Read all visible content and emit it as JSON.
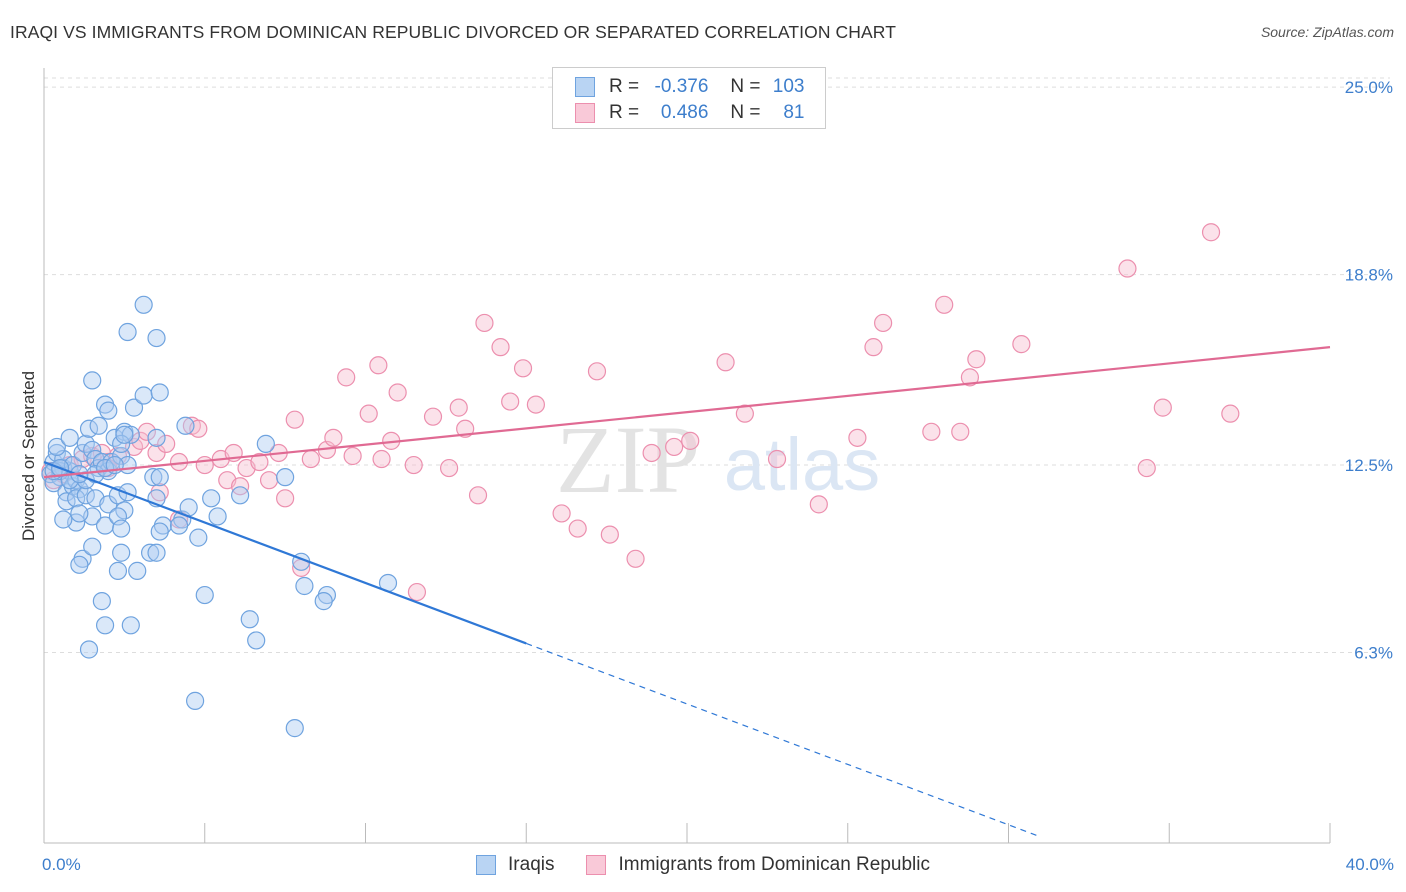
{
  "header": {
    "title": "IRAQI VS IMMIGRANTS FROM DOMINICAN REPUBLIC DIVORCED OR SEPARATED CORRELATION CHART",
    "source": "Source: ZipAtlas.com"
  },
  "watermark": {
    "zip": "ZIP",
    "atlas": "atlas"
  },
  "legend": {
    "rows": [
      {
        "r_label": "R =",
        "r_value": "-0.376",
        "n_label": "N =",
        "n_value": "103"
      },
      {
        "r_label": "R =",
        "r_value": "0.486",
        "n_label": "N =",
        "n_value": "81"
      }
    ]
  },
  "colors": {
    "blue_fill": "#aecdf1",
    "blue_stroke": "#6fa3df",
    "blue_line": "#2f78d6",
    "pink_fill": "#f7bfd0",
    "pink_stroke": "#ec8fae",
    "pink_line": "#e06a93",
    "grid": "#dddddd",
    "tick_text": "#3d7ecc"
  },
  "chart_data": {
    "type": "scatter",
    "title": "IRAQI VS IMMIGRANTS FROM DOMINICAN REPUBLIC DIVORCED OR SEPARATED CORRELATION CHART",
    "xlabel": "",
    "ylabel": "Divorced or Separated",
    "xlim": [
      0,
      40
    ],
    "ylim": [
      0,
      25.5
    ],
    "x_tick_labels": [
      {
        "value": 0,
        "label": "0.0%"
      },
      {
        "value": 40,
        "label": "40.0%"
      }
    ],
    "y_ticks": [
      {
        "value": 6.3,
        "label": "6.3%"
      },
      {
        "value": 12.5,
        "label": "12.5%"
      },
      {
        "value": 18.8,
        "label": "18.8%"
      },
      {
        "value": 25.0,
        "label": "25.0%"
      }
    ],
    "grid": true,
    "legend_placement": "top-center",
    "series": [
      {
        "name": "Iraqis",
        "r": -0.376,
        "n": 103,
        "trend": {
          "x0": 0,
          "y0": 12.6,
          "x1": 15,
          "y1": 6.6,
          "dashed_to_x": 31
        },
        "points": [
          [
            0.2,
            12.2
          ],
          [
            0.3,
            12.6
          ],
          [
            0.4,
            12.9
          ],
          [
            0.5,
            12.1
          ],
          [
            0.6,
            12.4
          ],
          [
            0.3,
            11.9
          ],
          [
            0.8,
            12.3
          ],
          [
            0.7,
            11.6
          ],
          [
            0.9,
            11.8
          ],
          [
            1.0,
            12.0
          ],
          [
            0.5,
            12.3
          ],
          [
            0.6,
            12.7
          ],
          [
            0.9,
            12.5
          ],
          [
            1.1,
            11.7
          ],
          [
            1.2,
            12.9
          ],
          [
            0.4,
            13.1
          ],
          [
            0.8,
            13.4
          ],
          [
            1.3,
            13.2
          ],
          [
            1.5,
            13.0
          ],
          [
            1.6,
            12.7
          ],
          [
            1.7,
            12.4
          ],
          [
            1.8,
            12.6
          ],
          [
            2.0,
            12.3
          ],
          [
            2.1,
            12.6
          ],
          [
            2.4,
            12.8
          ],
          [
            2.6,
            12.5
          ],
          [
            1.4,
            13.7
          ],
          [
            1.7,
            13.8
          ],
          [
            2.2,
            13.4
          ],
          [
            2.5,
            13.6
          ],
          [
            0.7,
            11.3
          ],
          [
            1.0,
            11.4
          ],
          [
            1.3,
            11.5
          ],
          [
            1.6,
            11.4
          ],
          [
            2.0,
            11.2
          ],
          [
            2.3,
            11.5
          ],
          [
            2.5,
            11.0
          ],
          [
            2.6,
            11.6
          ],
          [
            1.0,
            10.6
          ],
          [
            1.5,
            10.8
          ],
          [
            1.9,
            10.5
          ],
          [
            2.3,
            10.8
          ],
          [
            2.4,
            10.4
          ],
          [
            0.6,
            10.7
          ],
          [
            1.1,
            10.9
          ],
          [
            3.5,
            11.4
          ],
          [
            3.7,
            10.5
          ],
          [
            4.3,
            10.7
          ],
          [
            4.5,
            11.1
          ],
          [
            5.2,
            11.4
          ],
          [
            5.4,
            10.8
          ],
          [
            6.1,
            11.5
          ],
          [
            1.2,
            9.4
          ],
          [
            1.5,
            9.8
          ],
          [
            2.4,
            9.6
          ],
          [
            2.9,
            9.0
          ],
          [
            3.3,
            9.6
          ],
          [
            3.5,
            9.6
          ],
          [
            3.6,
            10.3
          ],
          [
            4.2,
            10.5
          ],
          [
            1.1,
            9.2
          ],
          [
            2.3,
            9.0
          ],
          [
            1.8,
            8.0
          ],
          [
            1.9,
            7.2
          ],
          [
            2.7,
            7.2
          ],
          [
            5.0,
            8.2
          ],
          [
            6.4,
            7.4
          ],
          [
            6.6,
            6.7
          ],
          [
            1.4,
            6.4
          ],
          [
            4.7,
            4.7
          ],
          [
            7.8,
            3.8
          ],
          [
            1.5,
            15.3
          ],
          [
            1.9,
            14.5
          ],
          [
            2.0,
            14.3
          ],
          [
            2.8,
            14.4
          ],
          [
            3.1,
            14.8
          ],
          [
            3.6,
            14.9
          ],
          [
            4.4,
            13.8
          ],
          [
            2.7,
            13.5
          ],
          [
            3.5,
            13.4
          ],
          [
            2.6,
            16.9
          ],
          [
            3.5,
            16.7
          ],
          [
            3.1,
            17.8
          ],
          [
            6.9,
            13.2
          ],
          [
            7.5,
            12.1
          ],
          [
            8.1,
            8.5
          ],
          [
            8.8,
            8.2
          ],
          [
            8.7,
            8.0
          ],
          [
            10.7,
            8.6
          ],
          [
            8.0,
            9.3
          ],
          [
            2.4,
            13.2
          ],
          [
            2.5,
            13.5
          ],
          [
            1.3,
            12.0
          ],
          [
            1.6,
            12.2
          ],
          [
            1.9,
            12.4
          ],
          [
            3.4,
            12.1
          ],
          [
            3.6,
            12.1
          ],
          [
            2.2,
            12.5
          ],
          [
            0.8,
            12.0
          ],
          [
            1.1,
            12.2
          ],
          [
            0.3,
            12.3
          ],
          [
            0.5,
            12.4
          ],
          [
            4.8,
            10.1
          ]
        ]
      },
      {
        "name": "Immigrants from Dominican Republic",
        "r": 0.486,
        "n": 81,
        "trend": {
          "x0": 0,
          "y0": 12.1,
          "x1": 40,
          "y1": 16.4
        },
        "points": [
          [
            0.2,
            12.3
          ],
          [
            0.3,
            12.0
          ],
          [
            0.5,
            12.4
          ],
          [
            0.6,
            12.2
          ],
          [
            0.8,
            12.5
          ],
          [
            1.2,
            12.7
          ],
          [
            1.5,
            12.8
          ],
          [
            1.8,
            12.9
          ],
          [
            2.0,
            12.6
          ],
          [
            2.3,
            12.8
          ],
          [
            2.8,
            13.1
          ],
          [
            3.0,
            13.3
          ],
          [
            3.2,
            13.6
          ],
          [
            3.5,
            12.9
          ],
          [
            3.8,
            13.2
          ],
          [
            4.2,
            12.6
          ],
          [
            4.6,
            13.8
          ],
          [
            5.0,
            12.5
          ],
          [
            5.5,
            12.7
          ],
          [
            5.9,
            12.9
          ],
          [
            6.3,
            12.4
          ],
          [
            6.7,
            12.6
          ],
          [
            7.0,
            12.0
          ],
          [
            7.3,
            12.9
          ],
          [
            7.5,
            11.4
          ],
          [
            7.8,
            14.0
          ],
          [
            8.3,
            12.7
          ],
          [
            8.8,
            13.0
          ],
          [
            9.0,
            13.4
          ],
          [
            9.6,
            12.8
          ],
          [
            10.1,
            14.2
          ],
          [
            9.4,
            15.4
          ],
          [
            10.5,
            12.7
          ],
          [
            10.8,
            13.3
          ],
          [
            11.0,
            14.9
          ],
          [
            10.4,
            15.8
          ],
          [
            11.5,
            12.5
          ],
          [
            12.1,
            14.1
          ],
          [
            12.6,
            12.4
          ],
          [
            12.9,
            14.4
          ],
          [
            13.1,
            13.7
          ],
          [
            13.5,
            11.5
          ],
          [
            13.7,
            17.2
          ],
          [
            14.2,
            16.4
          ],
          [
            14.5,
            14.6
          ],
          [
            14.9,
            15.7
          ],
          [
            15.3,
            14.5
          ],
          [
            16.1,
            10.9
          ],
          [
            16.6,
            10.4
          ],
          [
            17.2,
            15.6
          ],
          [
            17.6,
            10.2
          ],
          [
            18.4,
            9.4
          ],
          [
            18.9,
            12.9
          ],
          [
            19.6,
            13.1
          ],
          [
            20.1,
            13.3
          ],
          [
            21.2,
            15.9
          ],
          [
            21.8,
            14.2
          ],
          [
            22.8,
            12.7
          ],
          [
            24.1,
            11.2
          ],
          [
            25.3,
            13.4
          ],
          [
            25.8,
            16.4
          ],
          [
            26.1,
            17.2
          ],
          [
            27.6,
            13.6
          ],
          [
            28.0,
            17.8
          ],
          [
            28.5,
            13.6
          ],
          [
            28.8,
            15.4
          ],
          [
            29.0,
            16.0
          ],
          [
            30.4,
            16.5
          ],
          [
            33.7,
            19.0
          ],
          [
            34.3,
            12.4
          ],
          [
            34.8,
            14.4
          ],
          [
            36.3,
            20.2
          ],
          [
            36.9,
            14.2
          ],
          [
            3.6,
            11.6
          ],
          [
            4.2,
            10.7
          ],
          [
            2.0,
            12.4
          ],
          [
            5.7,
            12.0
          ],
          [
            6.1,
            11.8
          ],
          [
            8.0,
            9.1
          ],
          [
            4.8,
            13.7
          ],
          [
            11.6,
            8.3
          ]
        ]
      }
    ]
  }
}
